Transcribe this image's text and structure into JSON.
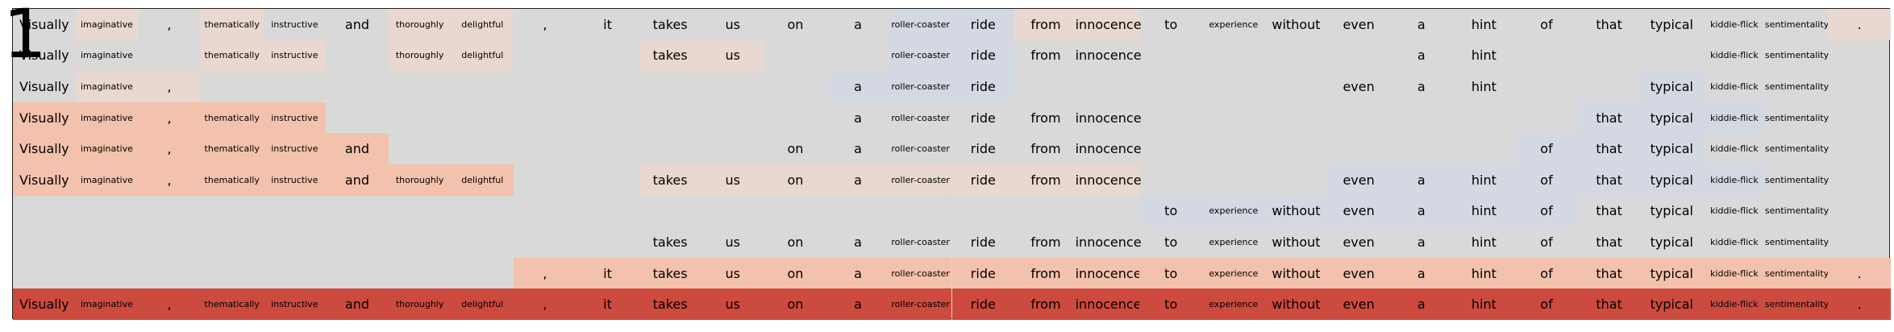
{
  "panel_label": "1",
  "tokens": [
    "Visually",
    "imaginative",
    ",",
    "thematically",
    "instructive",
    "and",
    "thoroughly",
    "delightful",
    ",",
    "it",
    "takes",
    "us",
    "on",
    "a",
    "roller-coaster",
    "ride",
    "from",
    "innocence",
    "to",
    "experience",
    "without",
    "even",
    "a",
    "hint",
    "of",
    "that",
    "typical",
    "kiddie-flick",
    "sentimentality",
    "."
  ],
  "colors": {
    "background": "#d9d9d9",
    "strong_positive": "#cd4a3f",
    "positive": "#f3c2ac",
    "weak_positive": "#e8d8d0",
    "weak_negative": "#d3d8e2",
    "border": "#222222"
  },
  "rows": [
    {
      "shown": [
        0,
        1,
        2,
        3,
        4,
        5,
        6,
        7,
        8,
        9,
        10,
        11,
        12,
        13,
        14,
        15,
        16,
        17,
        18,
        19,
        20,
        21,
        22,
        23,
        24,
        25,
        26,
        27,
        28,
        29
      ],
      "shade": {
        "1": "w",
        "3": "w",
        "6": "w",
        "7": "w",
        "16": "w",
        "17": "w",
        "29": "w",
        "14": "b",
        "15": "b"
      }
    },
    {
      "shown": [
        0,
        1,
        3,
        4,
        6,
        7,
        10,
        11,
        14,
        15,
        16,
        17,
        22,
        23,
        27,
        28
      ],
      "shade": {
        "3": "w",
        "4": "w",
        "6": "w",
        "7": "w",
        "10": "w",
        "11": "w",
        "14": "b",
        "15": "b"
      }
    },
    {
      "shown": [
        0,
        1,
        2,
        13,
        14,
        15,
        21,
        22,
        23,
        26,
        27,
        28
      ],
      "shade": {
        "1": "w",
        "2": "w",
        "13": "b",
        "14": "b",
        "15": "b",
        "26": "b"
      }
    },
    {
      "shown": [
        0,
        1,
        2,
        3,
        4,
        13,
        14,
        15,
        16,
        17,
        25,
        26,
        27,
        28
      ],
      "shade": {
        "0": "p",
        "1": "p",
        "2": "p",
        "3": "p",
        "4": "p",
        "25": "b",
        "26": "b",
        "27": "b"
      }
    },
    {
      "shown": [
        0,
        1,
        2,
        3,
        4,
        5,
        12,
        13,
        14,
        15,
        16,
        17,
        24,
        25,
        26,
        27,
        28
      ],
      "shade": {
        "0": "p",
        "1": "p",
        "2": "p",
        "3": "p",
        "4": "p",
        "5": "p",
        "24": "b",
        "25": "b",
        "26": "b"
      }
    },
    {
      "shown": [
        0,
        1,
        2,
        3,
        4,
        5,
        6,
        7,
        10,
        11,
        12,
        13,
        14,
        15,
        16,
        17,
        21,
        22,
        23,
        24,
        25,
        26,
        27,
        28
      ],
      "shade": {
        "0": "p",
        "1": "p",
        "2": "p",
        "3": "p",
        "4": "p",
        "5": "p",
        "6": "p",
        "7": "p",
        "10": "w",
        "11": "w",
        "12": "w",
        "13": "w",
        "14": "w",
        "15": "w",
        "16": "w",
        "17": "w",
        "21": "b",
        "22": "b",
        "23": "b",
        "24": "b",
        "25": "b",
        "26": "b",
        "27": "b"
      }
    },
    {
      "shown": [
        18,
        19,
        20,
        21,
        22,
        23,
        24,
        25,
        26,
        27,
        28
      ],
      "shade": {
        "18": "b",
        "19": "b",
        "20": "b",
        "21": "b",
        "22": "b",
        "23": "b",
        "24": "b"
      }
    },
    {
      "shown": [
        10,
        11,
        12,
        13,
        14,
        15,
        16,
        17,
        18,
        19,
        20,
        21,
        22,
        23,
        24,
        25,
        26,
        27,
        28
      ],
      "shade": {}
    },
    {
      "shown": [
        8,
        9,
        10,
        11,
        12,
        13,
        14,
        15,
        16,
        17,
        18,
        19,
        20,
        21,
        22,
        23,
        24,
        25,
        26,
        27,
        28,
        29
      ],
      "shade": {
        "8": "p",
        "9": "p",
        "10": "p",
        "11": "p",
        "12": "p",
        "13": "p",
        "14": "p",
        "15": "p",
        "16": "p",
        "17": "p",
        "18": "p",
        "19": "p",
        "20": "p",
        "21": "p",
        "22": "p",
        "23": "p",
        "24": "p",
        "25": "p",
        "26": "p",
        "27": "p",
        "28": "p",
        "29": "p"
      }
    },
    {
      "shown": [
        0,
        1,
        2,
        3,
        4,
        5,
        6,
        7,
        8,
        9,
        10,
        11,
        12,
        13,
        14,
        15,
        16,
        17,
        18,
        19,
        20,
        21,
        22,
        23,
        24,
        25,
        26,
        27,
        28,
        29
      ],
      "shade": "all-strong"
    }
  ]
}
